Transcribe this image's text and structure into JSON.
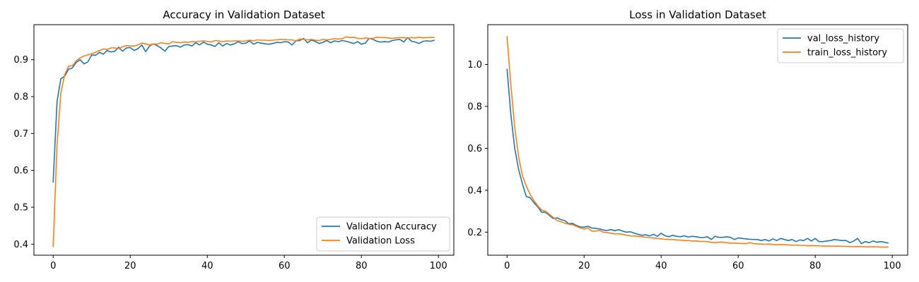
{
  "chart_data": [
    {
      "type": "line",
      "title": "Accuracy in Validation Dataset",
      "xlabel": "",
      "ylabel": "",
      "xlim": [
        -5,
        104
      ],
      "ylim": [
        0.37,
        0.995
      ],
      "xticks": [
        0,
        20,
        40,
        60,
        80,
        100
      ],
      "yticks": [
        0.4,
        0.5,
        0.6,
        0.7,
        0.8,
        0.9
      ],
      "grid": false,
      "legend_position": "lower-right",
      "series": [
        {
          "name": "Validation Accuracy",
          "color": "#1f77b4",
          "x": [
            0,
            1,
            2,
            3,
            4,
            5,
            6,
            7,
            8,
            9,
            10,
            11,
            12,
            13,
            14,
            15,
            16,
            17,
            18,
            19,
            20,
            21,
            22,
            23,
            24,
            25,
            26,
            27,
            28,
            29,
            30,
            31,
            32,
            33,
            34,
            35,
            36,
            37,
            38,
            39,
            40,
            41,
            42,
            43,
            44,
            45,
            46,
            47,
            48,
            49,
            50,
            51,
            52,
            53,
            54,
            55,
            56,
            57,
            58,
            59,
            60,
            61,
            62,
            63,
            64,
            65,
            66,
            67,
            68,
            69,
            70,
            71,
            72,
            73,
            74,
            75,
            76,
            77,
            78,
            79,
            80,
            81,
            82,
            83,
            84,
            85,
            86,
            87,
            88,
            89,
            90,
            91,
            92,
            93,
            94,
            95,
            96,
            97,
            98,
            99
          ],
          "values": [
            0.567,
            0.787,
            0.848,
            0.856,
            0.874,
            0.878,
            0.893,
            0.9,
            0.889,
            0.894,
            0.913,
            0.912,
            0.92,
            0.915,
            0.925,
            0.921,
            0.923,
            0.934,
            0.923,
            0.932,
            0.933,
            0.925,
            0.93,
            0.94,
            0.922,
            0.937,
            0.943,
            0.938,
            0.932,
            0.923,
            0.936,
            0.937,
            0.938,
            0.934,
            0.94,
            0.941,
            0.937,
            0.946,
            0.94,
            0.948,
            0.942,
            0.94,
            0.936,
            0.946,
            0.937,
            0.944,
            0.94,
            0.943,
            0.949,
            0.944,
            0.945,
            0.951,
            0.942,
            0.947,
            0.945,
            0.943,
            0.942,
            0.944,
            0.947,
            0.946,
            0.949,
            0.948,
            0.94,
            0.951,
            0.952,
            0.958,
            0.946,
            0.953,
            0.95,
            0.944,
            0.947,
            0.952,
            0.946,
            0.951,
            0.949,
            0.952,
            0.95,
            0.947,
            0.944,
            0.949,
            0.942,
            0.945,
            0.958,
            0.955,
            0.95,
            0.948,
            0.949,
            0.948,
            0.952,
            0.954,
            0.955,
            0.948,
            0.96,
            0.95,
            0.948,
            0.944,
            0.95,
            0.951,
            0.95,
            0.953
          ]
        },
        {
          "name": "Validation Loss",
          "color": "#ff7f0e",
          "x": [
            0,
            1,
            2,
            3,
            4,
            5,
            6,
            7,
            8,
            9,
            10,
            11,
            12,
            13,
            14,
            15,
            16,
            17,
            18,
            19,
            20,
            21,
            22,
            23,
            24,
            25,
            26,
            27,
            28,
            29,
            30,
            31,
            32,
            33,
            34,
            35,
            36,
            37,
            38,
            39,
            40,
            41,
            42,
            43,
            44,
            45,
            46,
            47,
            48,
            49,
            50,
            51,
            52,
            53,
            54,
            55,
            56,
            57,
            58,
            59,
            60,
            61,
            62,
            63,
            64,
            65,
            66,
            67,
            68,
            69,
            70,
            71,
            72,
            73,
            74,
            75,
            76,
            77,
            78,
            79,
            80,
            81,
            82,
            83,
            84,
            85,
            86,
            87,
            88,
            89,
            90,
            91,
            92,
            93,
            94,
            95,
            96,
            97,
            98,
            99
          ],
          "values": [
            0.392,
            0.67,
            0.81,
            0.86,
            0.882,
            0.884,
            0.897,
            0.905,
            0.91,
            0.913,
            0.916,
            0.92,
            0.925,
            0.929,
            0.928,
            0.932,
            0.932,
            0.93,
            0.935,
            0.938,
            0.937,
            0.937,
            0.94,
            0.945,
            0.943,
            0.94,
            0.943,
            0.942,
            0.946,
            0.944,
            0.943,
            0.949,
            0.947,
            0.946,
            0.948,
            0.947,
            0.949,
            0.948,
            0.95,
            0.951,
            0.95,
            0.948,
            0.952,
            0.951,
            0.949,
            0.951,
            0.95,
            0.951,
            0.951,
            0.95,
            0.951,
            0.953,
            0.951,
            0.954,
            0.953,
            0.953,
            0.952,
            0.953,
            0.954,
            0.955,
            0.955,
            0.954,
            0.954,
            0.951,
            0.956,
            0.955,
            0.954,
            0.955,
            0.953,
            0.952,
            0.955,
            0.954,
            0.955,
            0.957,
            0.956,
            0.957,
            0.962,
            0.96,
            0.961,
            0.958,
            0.957,
            0.959,
            0.958,
            0.958,
            0.961,
            0.96,
            0.96,
            0.959,
            0.958,
            0.959,
            0.96,
            0.96,
            0.958,
            0.96,
            0.959,
            0.961,
            0.959,
            0.96,
            0.96,
            0.961
          ]
        }
      ]
    },
    {
      "type": "line",
      "title": "Loss in Validation Dataset",
      "xlabel": "",
      "ylabel": "",
      "xlim": [
        -5,
        104
      ],
      "ylim": [
        0.09,
        1.19
      ],
      "xticks": [
        0,
        20,
        40,
        60,
        80,
        100
      ],
      "yticks": [
        0.2,
        0.4,
        0.6,
        0.8,
        1.0
      ],
      "grid": false,
      "legend_position": "upper-right",
      "series": [
        {
          "name": "val_loss_history",
          "color": "#1f77b4",
          "x": [
            0,
            1,
            2,
            3,
            4,
            5,
            6,
            7,
            8,
            9,
            10,
            11,
            12,
            13,
            14,
            15,
            16,
            17,
            18,
            19,
            20,
            21,
            22,
            23,
            24,
            25,
            26,
            27,
            28,
            29,
            30,
            31,
            32,
            33,
            34,
            35,
            36,
            37,
            38,
            39,
            40,
            41,
            42,
            43,
            44,
            45,
            46,
            47,
            48,
            49,
            50,
            51,
            52,
            53,
            54,
            55,
            56,
            57,
            58,
            59,
            60,
            61,
            62,
            63,
            64,
            65,
            66,
            67,
            68,
            69,
            70,
            71,
            72,
            73,
            74,
            75,
            76,
            77,
            78,
            79,
            80,
            81,
            82,
            83,
            84,
            85,
            86,
            87,
            88,
            89,
            90,
            91,
            92,
            93,
            94,
            95,
            96,
            97,
            98,
            99
          ],
          "values": [
            0.98,
            0.76,
            0.6,
            0.5,
            0.43,
            0.37,
            0.365,
            0.34,
            0.32,
            0.295,
            0.295,
            0.28,
            0.265,
            0.268,
            0.26,
            0.255,
            0.24,
            0.242,
            0.232,
            0.225,
            0.224,
            0.228,
            0.22,
            0.218,
            0.215,
            0.21,
            0.208,
            0.212,
            0.207,
            0.212,
            0.205,
            0.2,
            0.202,
            0.195,
            0.19,
            0.185,
            0.188,
            0.182,
            0.19,
            0.18,
            0.195,
            0.183,
            0.178,
            0.185,
            0.18,
            0.178,
            0.183,
            0.176,
            0.18,
            0.178,
            0.175,
            0.174,
            0.178,
            0.165,
            0.18,
            0.175,
            0.175,
            0.178,
            0.175,
            0.165,
            0.172,
            0.17,
            0.168,
            0.166,
            0.165,
            0.165,
            0.16,
            0.165,
            0.158,
            0.168,
            0.16,
            0.17,
            0.165,
            0.16,
            0.165,
            0.155,
            0.163,
            0.16,
            0.17,
            0.158,
            0.17,
            0.155,
            0.155,
            0.158,
            0.16,
            0.165,
            0.162,
            0.16,
            0.16,
            0.15,
            0.158,
            0.17,
            0.145,
            0.155,
            0.15,
            0.158,
            0.152,
            0.155,
            0.152,
            0.148
          ]
        },
        {
          "name": "train_loss_history",
          "color": "#ff7f0e",
          "x": [
            0,
            1,
            2,
            3,
            4,
            5,
            6,
            7,
            8,
            9,
            10,
            11,
            12,
            13,
            14,
            15,
            16,
            17,
            18,
            19,
            20,
            21,
            22,
            23,
            24,
            25,
            26,
            27,
            28,
            29,
            30,
            31,
            32,
            33,
            34,
            35,
            36,
            37,
            38,
            39,
            40,
            41,
            42,
            43,
            44,
            45,
            46,
            47,
            48,
            49,
            50,
            51,
            52,
            53,
            54,
            55,
            56,
            57,
            58,
            59,
            60,
            61,
            62,
            63,
            64,
            65,
            66,
            67,
            68,
            69,
            70,
            71,
            72,
            73,
            74,
            75,
            76,
            77,
            78,
            79,
            80,
            81,
            82,
            83,
            84,
            85,
            86,
            87,
            88,
            89,
            90,
            91,
            92,
            93,
            94,
            95,
            96,
            97,
            98,
            99
          ],
          "values": [
            1.135,
            0.9,
            0.7,
            0.56,
            0.47,
            0.42,
            0.38,
            0.35,
            0.325,
            0.305,
            0.3,
            0.285,
            0.27,
            0.255,
            0.25,
            0.243,
            0.238,
            0.235,
            0.228,
            0.22,
            0.215,
            0.22,
            0.205,
            0.205,
            0.208,
            0.2,
            0.198,
            0.195,
            0.192,
            0.192,
            0.19,
            0.185,
            0.183,
            0.182,
            0.18,
            0.178,
            0.176,
            0.174,
            0.172,
            0.17,
            0.168,
            0.166,
            0.165,
            0.165,
            0.163,
            0.162,
            0.16,
            0.16,
            0.158,
            0.158,
            0.156,
            0.156,
            0.155,
            0.152,
            0.15,
            0.152,
            0.152,
            0.15,
            0.148,
            0.148,
            0.147,
            0.146,
            0.145,
            0.15,
            0.145,
            0.144,
            0.143,
            0.142,
            0.143,
            0.141,
            0.14,
            0.14,
            0.14,
            0.139,
            0.138,
            0.138,
            0.137,
            0.137,
            0.135,
            0.136,
            0.135,
            0.135,
            0.134,
            0.134,
            0.133,
            0.133,
            0.133,
            0.132,
            0.132,
            0.131,
            0.131,
            0.131,
            0.131,
            0.13,
            0.13,
            0.13,
            0.13,
            0.129,
            0.129,
            0.129
          ]
        }
      ]
    }
  ]
}
